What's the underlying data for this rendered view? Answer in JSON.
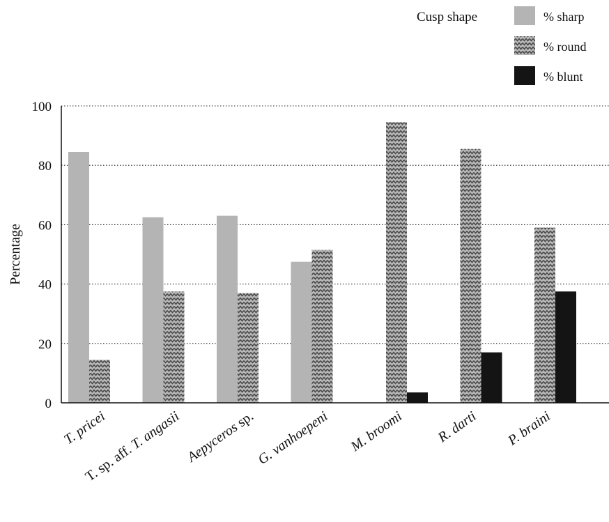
{
  "chart_data": {
    "type": "bar",
    "categories": [
      [
        {
          "t": "T. pricei",
          "i": true
        }
      ],
      [
        {
          "t": "T. sp. aff. ",
          "i": false
        },
        {
          "t": "T. angasii",
          "i": true
        }
      ],
      [
        {
          "t": "Aepyceros",
          "i": true
        },
        {
          "t": " sp.",
          "i": false
        }
      ],
      [
        {
          "t": "G. vanhoepeni",
          "i": true
        }
      ],
      [
        {
          "t": "M. broomi",
          "i": true
        }
      ],
      [
        {
          "t": "R. darti",
          "i": true
        }
      ],
      [
        {
          "t": "P. braini",
          "i": true
        }
      ]
    ],
    "series": [
      {
        "name": "% sharp",
        "values": [
          84.5,
          62.5,
          63,
          47.5,
          0,
          0,
          0
        ],
        "fill": "#b4b4b4"
      },
      {
        "name": "% round",
        "values": [
          14.5,
          37.5,
          37,
          51.5,
          94.5,
          85.5,
          59
        ],
        "fill": "zigzag"
      },
      {
        "name": "% blunt",
        "values": [
          0,
          0,
          0,
          0,
          3.5,
          17,
          37.5
        ],
        "fill": "#141414"
      }
    ],
    "ylabel": "Percentage",
    "ylim": [
      0,
      100
    ],
    "yticks": [
      0,
      20,
      40,
      60,
      80,
      100
    ],
    "grid": "dotted horizontal",
    "legend_title": "Cusp shape",
    "legend_position": "top-right"
  }
}
